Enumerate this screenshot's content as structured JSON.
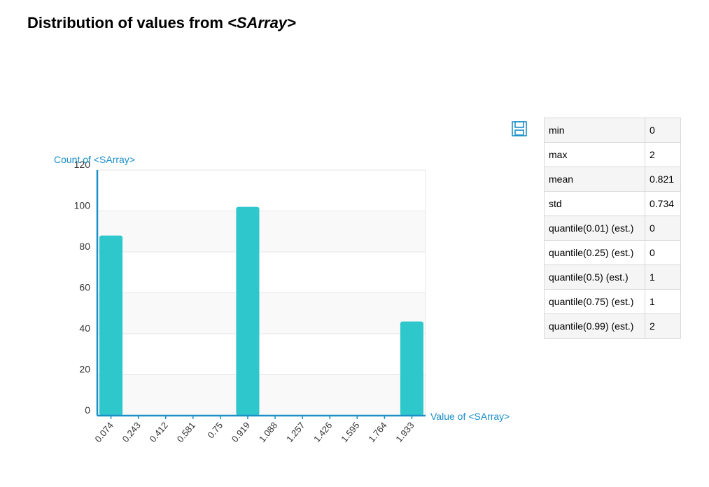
{
  "title_prefix": "Distribution of values from ",
  "title_em": "<SArray>",
  "stats": [
    {
      "key": "min",
      "value": "0"
    },
    {
      "key": "max",
      "value": "2"
    },
    {
      "key": "mean",
      "value": "0.821"
    },
    {
      "key": "std",
      "value": "0.734"
    },
    {
      "key": "quantile(0.01) (est.)",
      "value": "0"
    },
    {
      "key": "quantile(0.25) (est.)",
      "value": "0"
    },
    {
      "key": "quantile(0.5) (est.)",
      "value": "1"
    },
    {
      "key": "quantile(0.75) (est.)",
      "value": "1"
    },
    {
      "key": "quantile(0.99) (est.)",
      "value": "2"
    }
  ],
  "icons": {
    "save": "save-icon"
  },
  "colors": {
    "bar": "#2ec8cc",
    "axis": "#1a8fc8",
    "label": "#1a8fc8"
  },
  "chart_data": {
    "type": "bar",
    "xlabel": "Value of <SArray>",
    "ylabel": "Count of <SArray>",
    "categories": [
      "0.074",
      "0.243",
      "0.412",
      "0.581",
      "0.75",
      "0.919",
      "1.088",
      "1.257",
      "1.426",
      "1.595",
      "1.764",
      "1.933"
    ],
    "values": [
      88,
      0,
      0,
      0,
      0,
      102,
      0,
      0,
      0,
      0,
      0,
      46
    ],
    "ylim": [
      0,
      120
    ],
    "yticks": [
      0,
      20,
      40,
      60,
      80,
      100,
      120
    ],
    "grid": true
  }
}
